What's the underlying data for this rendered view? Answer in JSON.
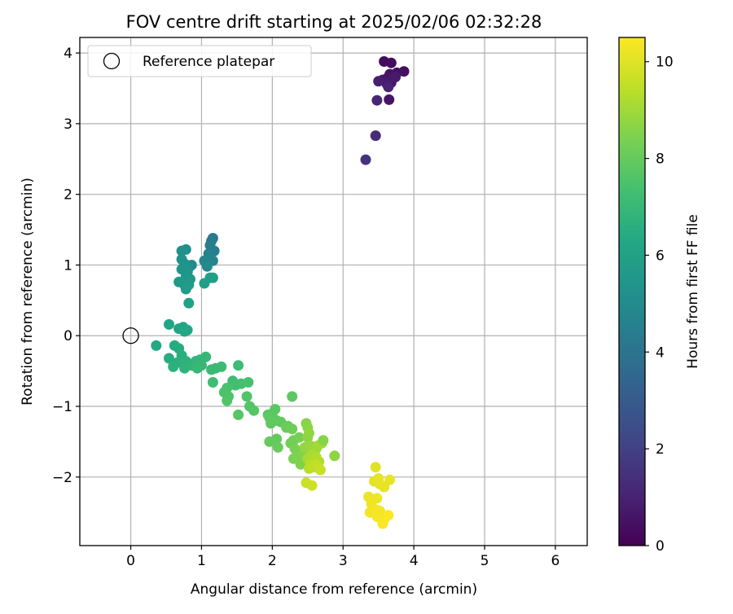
{
  "chart_data": {
    "type": "scatter",
    "title": "FOV centre drift starting at 2025/02/06 02:32:28",
    "xlabel": "Angular distance from reference (arcmin)",
    "ylabel": "Rotation from reference (arcmin)",
    "xlim": [
      -0.72,
      6.45
    ],
    "ylim": [
      -2.97,
      4.22
    ],
    "xticks": [
      "0",
      "1",
      "2",
      "3",
      "4",
      "5",
      "6"
    ],
    "yticks": [
      "−2",
      "−1",
      "0",
      "1",
      "2",
      "3",
      "4"
    ],
    "grid": true,
    "legend": {
      "position": "top-left",
      "entries": [
        "Reference platepar"
      ]
    },
    "reference_point": {
      "x": 0,
      "y": 0
    },
    "colorbar": {
      "label": "Hours from first FF file",
      "min": 0,
      "max": 10.5,
      "ticks": [
        "0",
        "2",
        "4",
        "6",
        "8",
        "10"
      ],
      "colormap": "viridis"
    },
    "points": [
      [
        3.58,
        3.88,
        0.3
      ],
      [
        3.68,
        3.86,
        0.35
      ],
      [
        3.86,
        3.74,
        0.4
      ],
      [
        3.76,
        3.72,
        0.45
      ],
      [
        3.66,
        3.7,
        0.5
      ],
      [
        3.72,
        3.66,
        0.55
      ],
      [
        3.62,
        3.64,
        0.6
      ],
      [
        3.56,
        3.62,
        0.65
      ],
      [
        3.68,
        3.58,
        0.7
      ],
      [
        3.62,
        3.56,
        0.8
      ],
      [
        3.5,
        3.6,
        0.9
      ],
      [
        3.64,
        3.52,
        1.0
      ],
      [
        3.74,
        3.66,
        0.75
      ],
      [
        3.65,
        3.34,
        0.6
      ],
      [
        3.48,
        3.33,
        1.1
      ],
      [
        3.46,
        2.83,
        1.3
      ],
      [
        3.32,
        2.49,
        1.5
      ],
      [
        1.16,
        1.38,
        4.2
      ],
      [
        1.14,
        1.34,
        4.3
      ],
      [
        1.12,
        1.28,
        4.4
      ],
      [
        1.18,
        1.2,
        4.5
      ],
      [
        1.1,
        1.16,
        4.6
      ],
      [
        1.16,
        1.06,
        4.7
      ],
      [
        1.06,
        1.04,
        4.8
      ],
      [
        1.04,
        1.06,
        4.85
      ],
      [
        1.08,
        0.98,
        4.9
      ],
      [
        0.86,
        1.0,
        5.0
      ],
      [
        0.82,
        0.96,
        5.1
      ],
      [
        0.78,
        1.22,
        5.2
      ],
      [
        0.72,
        1.2,
        5.25
      ],
      [
        0.72,
        1.08,
        5.3
      ],
      [
        0.76,
        1.02,
        5.35
      ],
      [
        0.8,
        0.9,
        5.4
      ],
      [
        0.72,
        0.94,
        5.45
      ],
      [
        0.78,
        0.84,
        5.5
      ],
      [
        0.84,
        0.8,
        5.55
      ],
      [
        0.68,
        0.76,
        5.6
      ],
      [
        0.76,
        0.72,
        5.65
      ],
      [
        0.82,
        0.72,
        5.7
      ],
      [
        0.78,
        0.66,
        5.75
      ],
      [
        1.04,
        0.74,
        5.8
      ],
      [
        1.12,
        0.82,
        5.85
      ],
      [
        1.16,
        0.82,
        5.9
      ],
      [
        0.82,
        0.46,
        6.0
      ],
      [
        0.54,
        0.16,
        6.1
      ],
      [
        0.68,
        0.1,
        6.15
      ],
      [
        0.74,
        0.12,
        6.2
      ],
      [
        0.8,
        0.08,
        6.25
      ],
      [
        0.76,
        0.06,
        6.3
      ],
      [
        0.36,
        -0.14,
        6.35
      ],
      [
        0.62,
        -0.14,
        6.4
      ],
      [
        0.68,
        -0.18,
        6.45
      ],
      [
        0.54,
        -0.32,
        6.5
      ],
      [
        0.72,
        -0.28,
        6.55
      ],
      [
        0.66,
        -0.38,
        6.6
      ],
      [
        0.6,
        -0.44,
        6.65
      ],
      [
        0.78,
        -0.36,
        6.7
      ],
      [
        0.76,
        -0.46,
        6.75
      ],
      [
        0.86,
        -0.42,
        6.8
      ],
      [
        0.92,
        -0.36,
        6.85
      ],
      [
        0.98,
        -0.34,
        6.9
      ],
      [
        1.06,
        -0.3,
        6.95
      ],
      [
        0.94,
        -0.46,
        6.98
      ],
      [
        1.0,
        -0.42,
        7.0
      ],
      [
        1.14,
        -0.48,
        7.05
      ],
      [
        1.2,
        -0.46,
        7.1
      ],
      [
        1.28,
        -0.44,
        7.12
      ],
      [
        1.52,
        -0.42,
        7.15
      ],
      [
        1.16,
        -0.66,
        7.2
      ],
      [
        1.44,
        -0.64,
        7.25
      ],
      [
        1.48,
        -0.7,
        7.3
      ],
      [
        1.56,
        -0.68,
        7.35
      ],
      [
        1.66,
        -0.66,
        7.4
      ],
      [
        1.36,
        -0.74,
        7.45
      ],
      [
        1.32,
        -0.8,
        7.5
      ],
      [
        1.38,
        -0.86,
        7.55
      ],
      [
        1.64,
        -0.86,
        7.6
      ],
      [
        1.36,
        -0.92,
        7.62
      ],
      [
        1.68,
        -1.0,
        7.65
      ],
      [
        1.74,
        -1.06,
        7.7
      ],
      [
        1.52,
        -1.12,
        7.72
      ],
      [
        1.94,
        -1.12,
        7.75
      ],
      [
        2.0,
        -1.1,
        7.78
      ],
      [
        2.04,
        -1.04,
        7.8
      ],
      [
        2.28,
        -0.86,
        7.82
      ],
      [
        1.96,
        -1.16,
        7.85
      ],
      [
        1.98,
        -1.24,
        7.88
      ],
      [
        2.06,
        -1.2,
        7.9
      ],
      [
        2.12,
        -1.22,
        7.92
      ],
      [
        2.22,
        -1.28,
        7.95
      ],
      [
        1.96,
        -1.5,
        7.98
      ],
      [
        2.06,
        -1.46,
        8.0
      ],
      [
        2.08,
        -1.58,
        8.05
      ],
      [
        2.2,
        -1.3,
        8.1
      ],
      [
        2.28,
        -1.32,
        8.15
      ],
      [
        2.26,
        -1.52,
        8.2
      ],
      [
        2.3,
        -1.48,
        8.25
      ],
      [
        2.38,
        -1.44,
        8.3
      ],
      [
        2.32,
        -1.6,
        8.35
      ],
      [
        2.3,
        -1.74,
        8.4
      ],
      [
        2.36,
        -1.72,
        8.45
      ],
      [
        2.4,
        -1.82,
        8.5
      ],
      [
        2.44,
        -1.66,
        8.55
      ],
      [
        2.48,
        -1.24,
        8.6
      ],
      [
        2.5,
        -1.3,
        8.65
      ],
      [
        2.5,
        -1.44,
        8.7
      ],
      [
        2.52,
        -1.38,
        8.75
      ],
      [
        2.46,
        -1.58,
        8.8
      ],
      [
        2.54,
        -1.56,
        8.85
      ],
      [
        2.58,
        -1.62,
        8.9
      ],
      [
        2.62,
        -1.6,
        8.95
      ],
      [
        2.64,
        -1.56,
        9.0
      ],
      [
        2.7,
        -1.52,
        9.05
      ],
      [
        2.72,
        -1.48,
        8.6
      ],
      [
        2.88,
        -1.7,
        8.7
      ],
      [
        2.5,
        -1.74,
        9.1
      ],
      [
        2.56,
        -1.68,
        9.15
      ],
      [
        2.6,
        -1.76,
        9.2
      ],
      [
        2.62,
        -1.72,
        9.25
      ],
      [
        2.66,
        -1.78,
        9.3
      ],
      [
        2.54,
        -1.82,
        9.35
      ],
      [
        2.52,
        -1.88,
        9.4
      ],
      [
        2.58,
        -1.86,
        9.45
      ],
      [
        2.62,
        -1.82,
        9.5
      ],
      [
        2.66,
        -1.88,
        9.55
      ],
      [
        2.68,
        -1.9,
        9.6
      ],
      [
        2.48,
        -2.08,
        9.65
      ],
      [
        2.56,
        -2.12,
        9.7
      ],
      [
        3.46,
        -1.86,
        10.0
      ],
      [
        3.44,
        -2.06,
        10.05
      ],
      [
        3.5,
        -2.02,
        10.1
      ],
      [
        3.52,
        -2.1,
        10.12
      ],
      [
        3.58,
        -2.14,
        10.15
      ],
      [
        3.66,
        -2.04,
        10.18
      ],
      [
        3.36,
        -2.28,
        10.2
      ],
      [
        3.42,
        -2.32,
        10.22
      ],
      [
        3.48,
        -2.3,
        10.25
      ],
      [
        3.4,
        -2.38,
        10.28
      ],
      [
        3.38,
        -2.5,
        10.3
      ],
      [
        3.46,
        -2.46,
        10.32
      ],
      [
        3.52,
        -2.48,
        10.35
      ],
      [
        3.48,
        -2.56,
        10.38
      ],
      [
        3.54,
        -2.58,
        10.4
      ],
      [
        3.58,
        -2.6,
        10.42
      ],
      [
        3.56,
        -2.66,
        10.45
      ],
      [
        3.64,
        -2.54,
        10.48
      ]
    ]
  }
}
